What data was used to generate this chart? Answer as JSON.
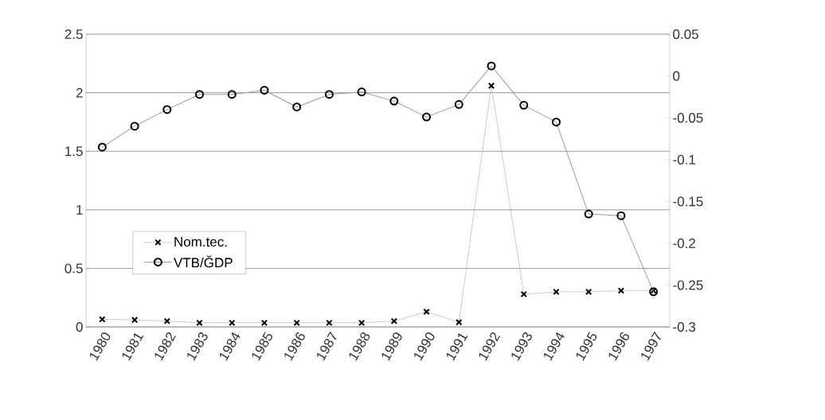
{
  "chart_data": {
    "type": "line",
    "categories": [
      "1980",
      "1981",
      "1982",
      "1983",
      "1984",
      "1985",
      "1986",
      "1987",
      "1988",
      "1989",
      "1990",
      "1991",
      "1992",
      "1993",
      "1994",
      "1995",
      "1996",
      "1997"
    ],
    "series": [
      {
        "name": "Nom.tec.",
        "color": "#000000",
        "marker": "cross",
        "line_style": "dotted",
        "values": [
          0.065,
          0.06,
          0.05,
          0.035,
          0.035,
          0.035,
          0.035,
          0.035,
          0.035,
          0.05,
          0.13,
          0.04,
          2.06,
          0.28,
          0.3,
          0.3,
          0.31,
          0.31
        ]
      },
      {
        "name": "VTB/ĞDP",
        "color": "#000000",
        "marker": "circle",
        "line_style": "solid",
        "axis": "y2",
        "values": [
          -0.085,
          -0.06,
          -0.04,
          -0.022,
          -0.022,
          -0.017,
          -0.037,
          -0.022,
          -0.019,
          -0.03,
          -0.049,
          -0.034,
          0.012,
          -0.035,
          -0.055,
          -0.165,
          -0.167,
          -0.258
        ]
      }
    ],
    "ylim": [
      0,
      2.5
    ],
    "yticks": [
      0,
      0.5,
      1,
      1.5,
      2,
      2.5
    ],
    "y2lim": [
      -0.3,
      0.05
    ],
    "y2ticks": [
      -0.3,
      -0.25,
      -0.2,
      -0.15,
      -0.1,
      -0.05,
      0,
      0.05
    ],
    "grid": "y",
    "legend": "left"
  }
}
